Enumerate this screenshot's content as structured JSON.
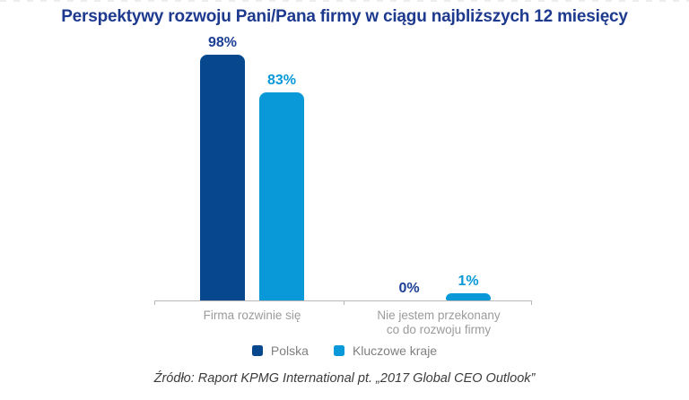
{
  "title": "Perspektywy rozwoju Pani/Pana firmy w ciągu najbliższych 12 miesięcy",
  "source": "Źródło: Raport KPMG International pt. „2017 Global CEO Outlook”",
  "colors": {
    "title": "#1E3A8E",
    "axis": "#B9B9B9",
    "category_label": "#9B9B9B",
    "legend_text": "#7F7F7F",
    "source_text": "#3C3C3C"
  },
  "chart_data": {
    "type": "bar",
    "title": "Perspektywy rozwoju Pani/Pana firmy w ciągu najbliższych 12 miesięcy",
    "categories": [
      "Firma rozwinie się",
      "Nie jestem przekonany\nco do rozwoju firmy"
    ],
    "series": [
      {
        "name": "Polska",
        "values": [
          98,
          0
        ],
        "color": "#06478D",
        "label_color": "#1D3F94"
      },
      {
        "name": "Kluczowe kraje",
        "values": [
          83,
          1
        ],
        "color": "#0999D8",
        "label_color": "#0999D8"
      }
    ],
    "value_suffix": "%",
    "xlabel": "",
    "ylabel": "",
    "ylim": [
      0,
      100
    ],
    "grid": false,
    "legend_position": "bottom"
  }
}
